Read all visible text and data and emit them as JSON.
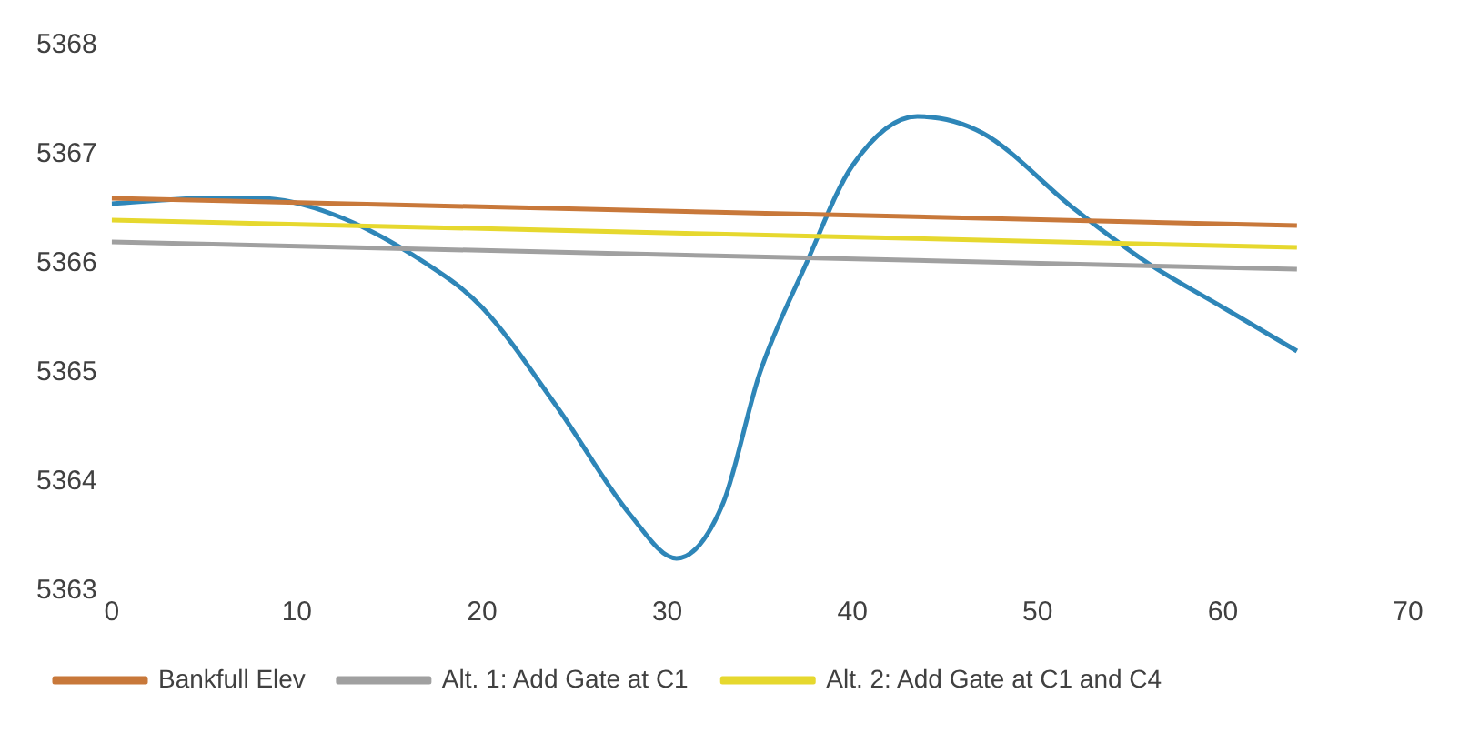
{
  "chart_data": {
    "type": "line",
    "xlim": [
      0,
      70
    ],
    "xticks": [
      0,
      10,
      20,
      30,
      40,
      50,
      60,
      70
    ],
    "ylim": [
      5363,
      5368
    ],
    "yticks": [
      5363,
      5364,
      5365,
      5366,
      5367,
      5368
    ],
    "grid": false,
    "legend": "bottom",
    "marker": "none",
    "line_style": "solid",
    "series": [
      {
        "name": "Bankfull Elev",
        "color": "#c8783a",
        "x": [
          0,
          64
        ],
        "values": [
          5366.6,
          5366.35
        ]
      },
      {
        "name": "Alt. 1: Add Gate at C1",
        "color": "#a0a0a0",
        "x": [
          0,
          64
        ],
        "values": [
          5366.2,
          5365.95
        ]
      },
      {
        "name": "Alt. 2: Add Gate at C1 and C4",
        "color": "#e6d82e",
        "x": [
          0,
          64
        ],
        "values": [
          5366.4,
          5366.15
        ]
      },
      {
        "color": "#2e86b8",
        "x": [
          0,
          5,
          8,
          12,
          17,
          20,
          24,
          28,
          30.5,
          33,
          35,
          37.5,
          40,
          43.5,
          47,
          52,
          56,
          60,
          64
        ],
        "values": [
          5366.55,
          5366.6,
          5366.6,
          5366.45,
          5366.0,
          5365.6,
          5364.7,
          5363.7,
          5363.3,
          5363.8,
          5365.0,
          5366.0,
          5366.9,
          5367.35,
          5367.2,
          5366.5,
          5366.0,
          5365.6,
          5365.2
        ]
      }
    ]
  }
}
